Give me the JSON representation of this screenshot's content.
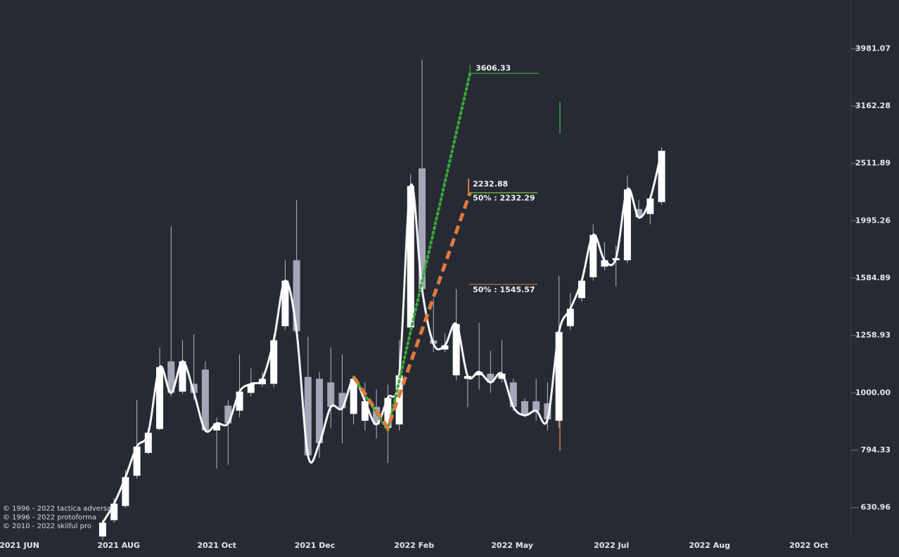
{
  "chart_data": {
    "type": "candlestick",
    "log_scale": true,
    "up_color": "#ffffff",
    "down_color": "#a4a7b8",
    "wick_color": "#b8bac4",
    "line_color": "#ffffff",
    "open": [
      562,
      600,
      635,
      717,
      786,
      865,
      1135,
      1005,
      1037,
      1098,
      860,
      950,
      931,
      1000,
      1035,
      1037,
      1307,
      1703,
      1066,
      1058,
      1043,
      1000,
      919,
      894,
      945,
      869,
      881,
      1300,
      2462,
      1235,
      1190,
      1073,
      1058,
      1073,
      1080,
      1058,
      1043,
      967,
      967,
      959,
      894,
      1307,
      1463,
      1591,
      1660,
      1703,
      1703,
      2091,
      2050,
      2151
    ],
    "high": [
      600,
      656,
      734,
      972,
      869,
      1200,
      1950,
      1235,
      1264,
      1135,
      906,
      972,
      1167,
      1103,
      1088,
      1264,
      1703,
      2170,
      1253,
      1088,
      1200,
      1167,
      1073,
      1043,
      1014,
      1034,
      1235,
      2407,
      3810,
      1462,
      1270,
      1517,
      1073,
      1325,
      1184,
      1235,
      1058,
      977,
      1058,
      1043,
      1600,
      1492,
      1591,
      1966,
      1831,
      1806,
      2393,
      2170,
      2200,
      2679
    ],
    "low": [
      554,
      594,
      630,
      709,
      781,
      860,
      986,
      995,
      972,
      855,
      738,
      750,
      906,
      986,
      1023,
      1023,
      1288,
      1270,
      770,
      770,
      869,
      817,
      881,
      860,
      833,
      755,
      860,
      1288,
      1509,
      1177,
      1177,
      1052,
      945,
      1014,
      1000,
      1043,
      931,
      906,
      894,
      860,
      869,
      1288,
      1442,
      1569,
      1637,
      1534,
      1684,
      2011,
      1966,
      2127
    ],
    "close": [
      594,
      641,
      713,
      806,
      852,
      1109,
      1000,
      1135,
      1000,
      860,
      885,
      885,
      1005,
      1037,
      1058,
      1235,
      1569,
      1281,
      778,
      817,
      945,
      940,
      1058,
      967,
      881,
      980,
      1073,
      2295,
      1517,
      1218,
      1210,
      1318,
      1070,
      1088,
      1043,
      1080,
      945,
      914,
      931,
      899,
      1277,
      1402,
      1569,
      1885,
      1703,
      1717,
      2263,
      2022,
      2182,
      2642
    ],
    "xlim": [
      -9,
      65
    ],
    "xticks": [
      {
        "value": -7.3,
        "label": "2021 JUN"
      },
      {
        "value": 1.4,
        "label": "2021 AUG"
      },
      {
        "value": 10,
        "label": "2021 Oct"
      },
      {
        "value": 18.6,
        "label": "2021 Dec"
      },
      {
        "value": 27.3,
        "label": "2022 Feb"
      },
      {
        "value": 35.9,
        "label": "2022 May"
      },
      {
        "value": 44.6,
        "label": "2022 Jul"
      },
      {
        "value": 53.2,
        "label": "2022 Aug"
      },
      {
        "value": 61.9,
        "label": "2022 Oct"
      }
    ],
    "ylim": [
      560,
      4840
    ],
    "yticks": [
      630.96,
      794.33,
      {
        "value": 1000,
        "label": "1000.00"
      },
      1258.93,
      1584.89,
      1995.26,
      2511.89,
      3162.28,
      3981.07
    ],
    "projections": [
      {
        "color": "#3aa83a",
        "style": "dotted",
        "points": [
          [
            22,
            1066
          ],
          [
            25,
            860
          ],
          [
            32.2,
            3606.33
          ]
        ]
      },
      {
        "color": "#e07a3f",
        "style": "dashed",
        "points": [
          [
            22,
            1066
          ],
          [
            25,
            869
          ],
          [
            32.2,
            2232.88
          ]
        ]
      }
    ],
    "levels": [
      {
        "value": 3606.33,
        "color": "#3aa83a"
      },
      {
        "value": 2232.88,
        "color": "#e07a3f"
      },
      {
        "value": 2232.29,
        "label": "50% : 2232.29",
        "color": "#7dc23a"
      },
      {
        "value": 1545.57,
        "label": "50% : 1545.57",
        "color": "#b0704a"
      }
    ],
    "notes": [
      "© 1996 - 2022 tactica adversa",
      "© 1996 - 2022 protoforma",
      "© 2010 - 2022 skilful pro"
    ]
  }
}
